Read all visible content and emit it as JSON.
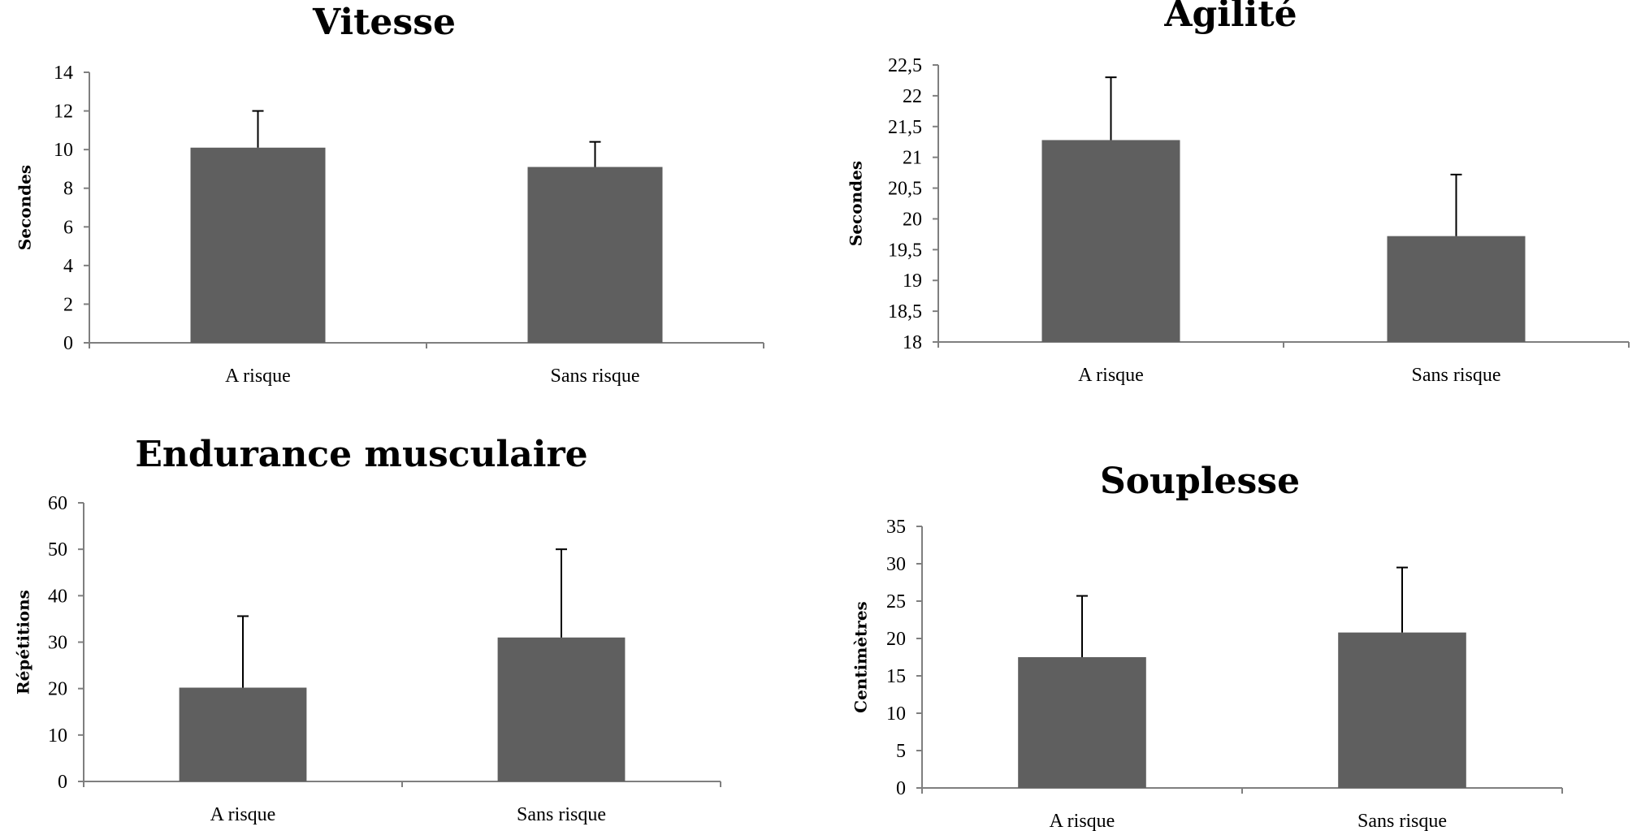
{
  "chart_data": [
    {
      "type": "bar",
      "title": "Vitesse",
      "ylabel": "Secondes",
      "xlabel": "",
      "categories": [
        "A risque",
        "Sans risque"
      ],
      "values": [
        10.1,
        9.1
      ],
      "error": [
        1.9,
        1.3
      ],
      "ylim": [
        0,
        14
      ],
      "yticks": [
        0,
        2,
        4,
        6,
        8,
        10,
        12,
        14
      ],
      "ytick_labels": [
        "0",
        "2",
        "4",
        "6",
        "8",
        "10",
        "12",
        "14"
      ],
      "grid": false,
      "bar_color": "#5f5f5f"
    },
    {
      "type": "bar",
      "title": "Agilité",
      "ylabel": "Secondes",
      "xlabel": "",
      "categories": [
        "A risque",
        "Sans risque"
      ],
      "values": [
        21.28,
        19.72
      ],
      "error": [
        1.02,
        1.0
      ],
      "ylim": [
        18,
        22.5
      ],
      "yticks": [
        18,
        18.5,
        19,
        19.5,
        20,
        20.5,
        21,
        21.5,
        22,
        22.5
      ],
      "ytick_labels": [
        "18",
        "18,5",
        "19",
        "19,5",
        "20",
        "20,5",
        "21",
        "21,5",
        "22",
        "22,5"
      ],
      "grid": false,
      "bar_color": "#5f5f5f"
    },
    {
      "type": "bar",
      "title": "Endurance musculaire",
      "ylabel": "Répétitions",
      "xlabel": "",
      "categories": [
        "A risque",
        "Sans risque"
      ],
      "values": [
        20.2,
        31.0
      ],
      "error": [
        15.4,
        19.0
      ],
      "ylim": [
        0,
        60
      ],
      "yticks": [
        0,
        10,
        20,
        30,
        40,
        50,
        60
      ],
      "ytick_labels": [
        "0",
        "10",
        "20",
        "30",
        "40",
        "50",
        "60"
      ],
      "grid": false,
      "bar_color": "#5f5f5f"
    },
    {
      "type": "bar",
      "title": "Souplesse",
      "ylabel": "Centimètres",
      "xlabel": "",
      "categories": [
        "A risque",
        "Sans risque"
      ],
      "values": [
        17.5,
        20.8
      ],
      "error": [
        8.2,
        8.7
      ],
      "ylim": [
        0,
        35
      ],
      "yticks": [
        0,
        5,
        10,
        15,
        20,
        25,
        30,
        35
      ],
      "ytick_labels": [
        "0",
        "5",
        "10",
        "15",
        "20",
        "25",
        "30",
        "35"
      ],
      "grid": false,
      "bar_color": "#5f5f5f"
    }
  ]
}
